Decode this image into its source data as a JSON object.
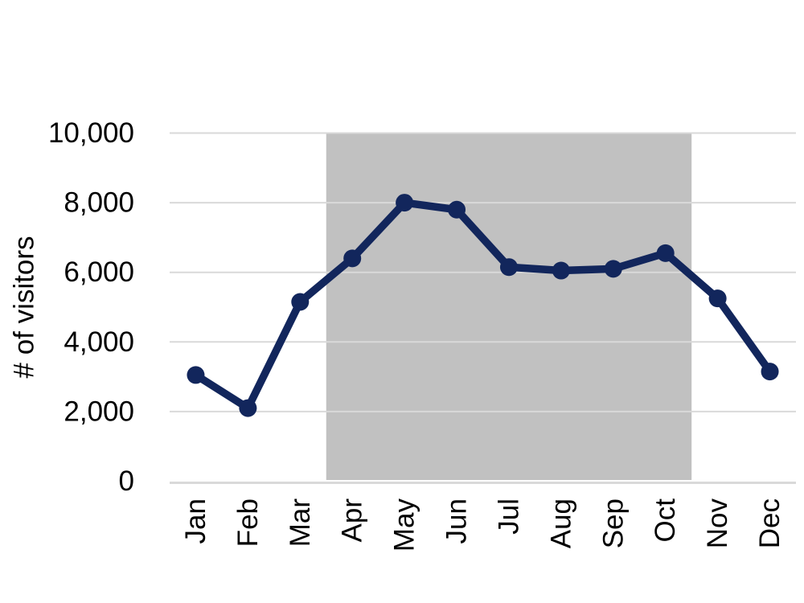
{
  "chart_data": {
    "type": "line",
    "title": "",
    "xlabel": "",
    "ylabel": "# of visitors",
    "x": [
      "Jan",
      "Feb",
      "Mar",
      "Apr",
      "May",
      "Jun",
      "Jul",
      "Aug",
      "Sep",
      "Oct",
      "Nov",
      "Dec"
    ],
    "series": [
      {
        "name": "# of visitors",
        "values": [
          3050,
          2100,
          5150,
          6400,
          8000,
          7800,
          6150,
          6050,
          6100,
          6550,
          5250,
          3150
        ]
      }
    ],
    "ylim": [
      0,
      10000
    ],
    "ytick_step": 2000,
    "yticks": [
      0,
      2000,
      4000,
      6000,
      8000,
      10000
    ],
    "ytick_labels": [
      "0",
      "2,000",
      "4,000",
      "6,000",
      "8,000",
      "10,000"
    ],
    "grid": true,
    "legend": "none",
    "shaded_band": {
      "from_category": "Apr",
      "to_category": "Oct",
      "color": "#c1c1c1"
    },
    "colors": {
      "line": "#12265c",
      "marker": "#12265c",
      "gridline": "#d9d9d9",
      "axis_line": "#d9d9d9",
      "text": "#000000",
      "background": "#ffffff"
    }
  }
}
